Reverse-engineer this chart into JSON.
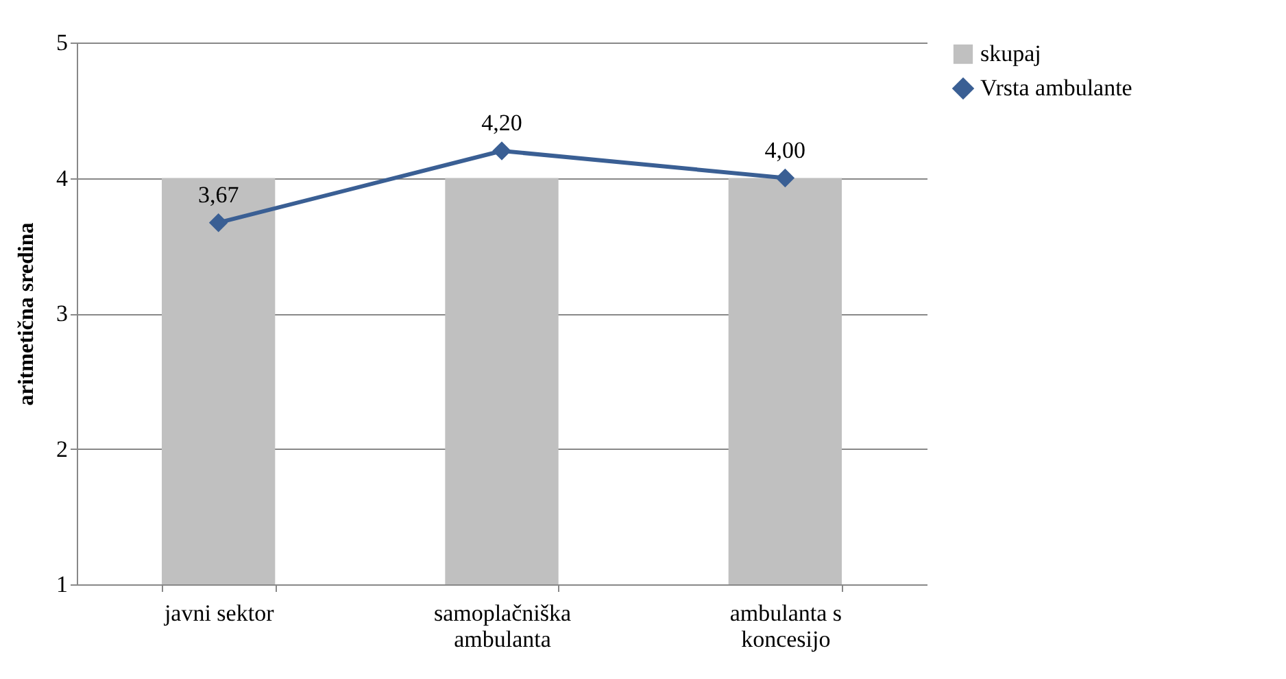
{
  "chart_data": {
    "type": "bar",
    "ylabel": "aritmetična sredina",
    "categories": [
      "javni sektor",
      "samoplačniška ambulanta",
      "ambulanta s koncesijo"
    ],
    "series": [
      {
        "name": "skupaj",
        "color": "#c0c0c0",
        "values": [
          4,
          4,
          4
        ]
      },
      {
        "name": "Vrsta ambulante",
        "type": "line",
        "color": "#3a5f94",
        "values": [
          3.67,
          4.2,
          4.0
        ],
        "value_labels": [
          "3,67",
          "4,20",
          "4,00"
        ]
      }
    ],
    "ylim": [
      1,
      5
    ],
    "yticks": [
      1,
      2,
      3,
      4,
      5
    ],
    "grid": "y",
    "legend": "right",
    "marker": "diamond"
  }
}
